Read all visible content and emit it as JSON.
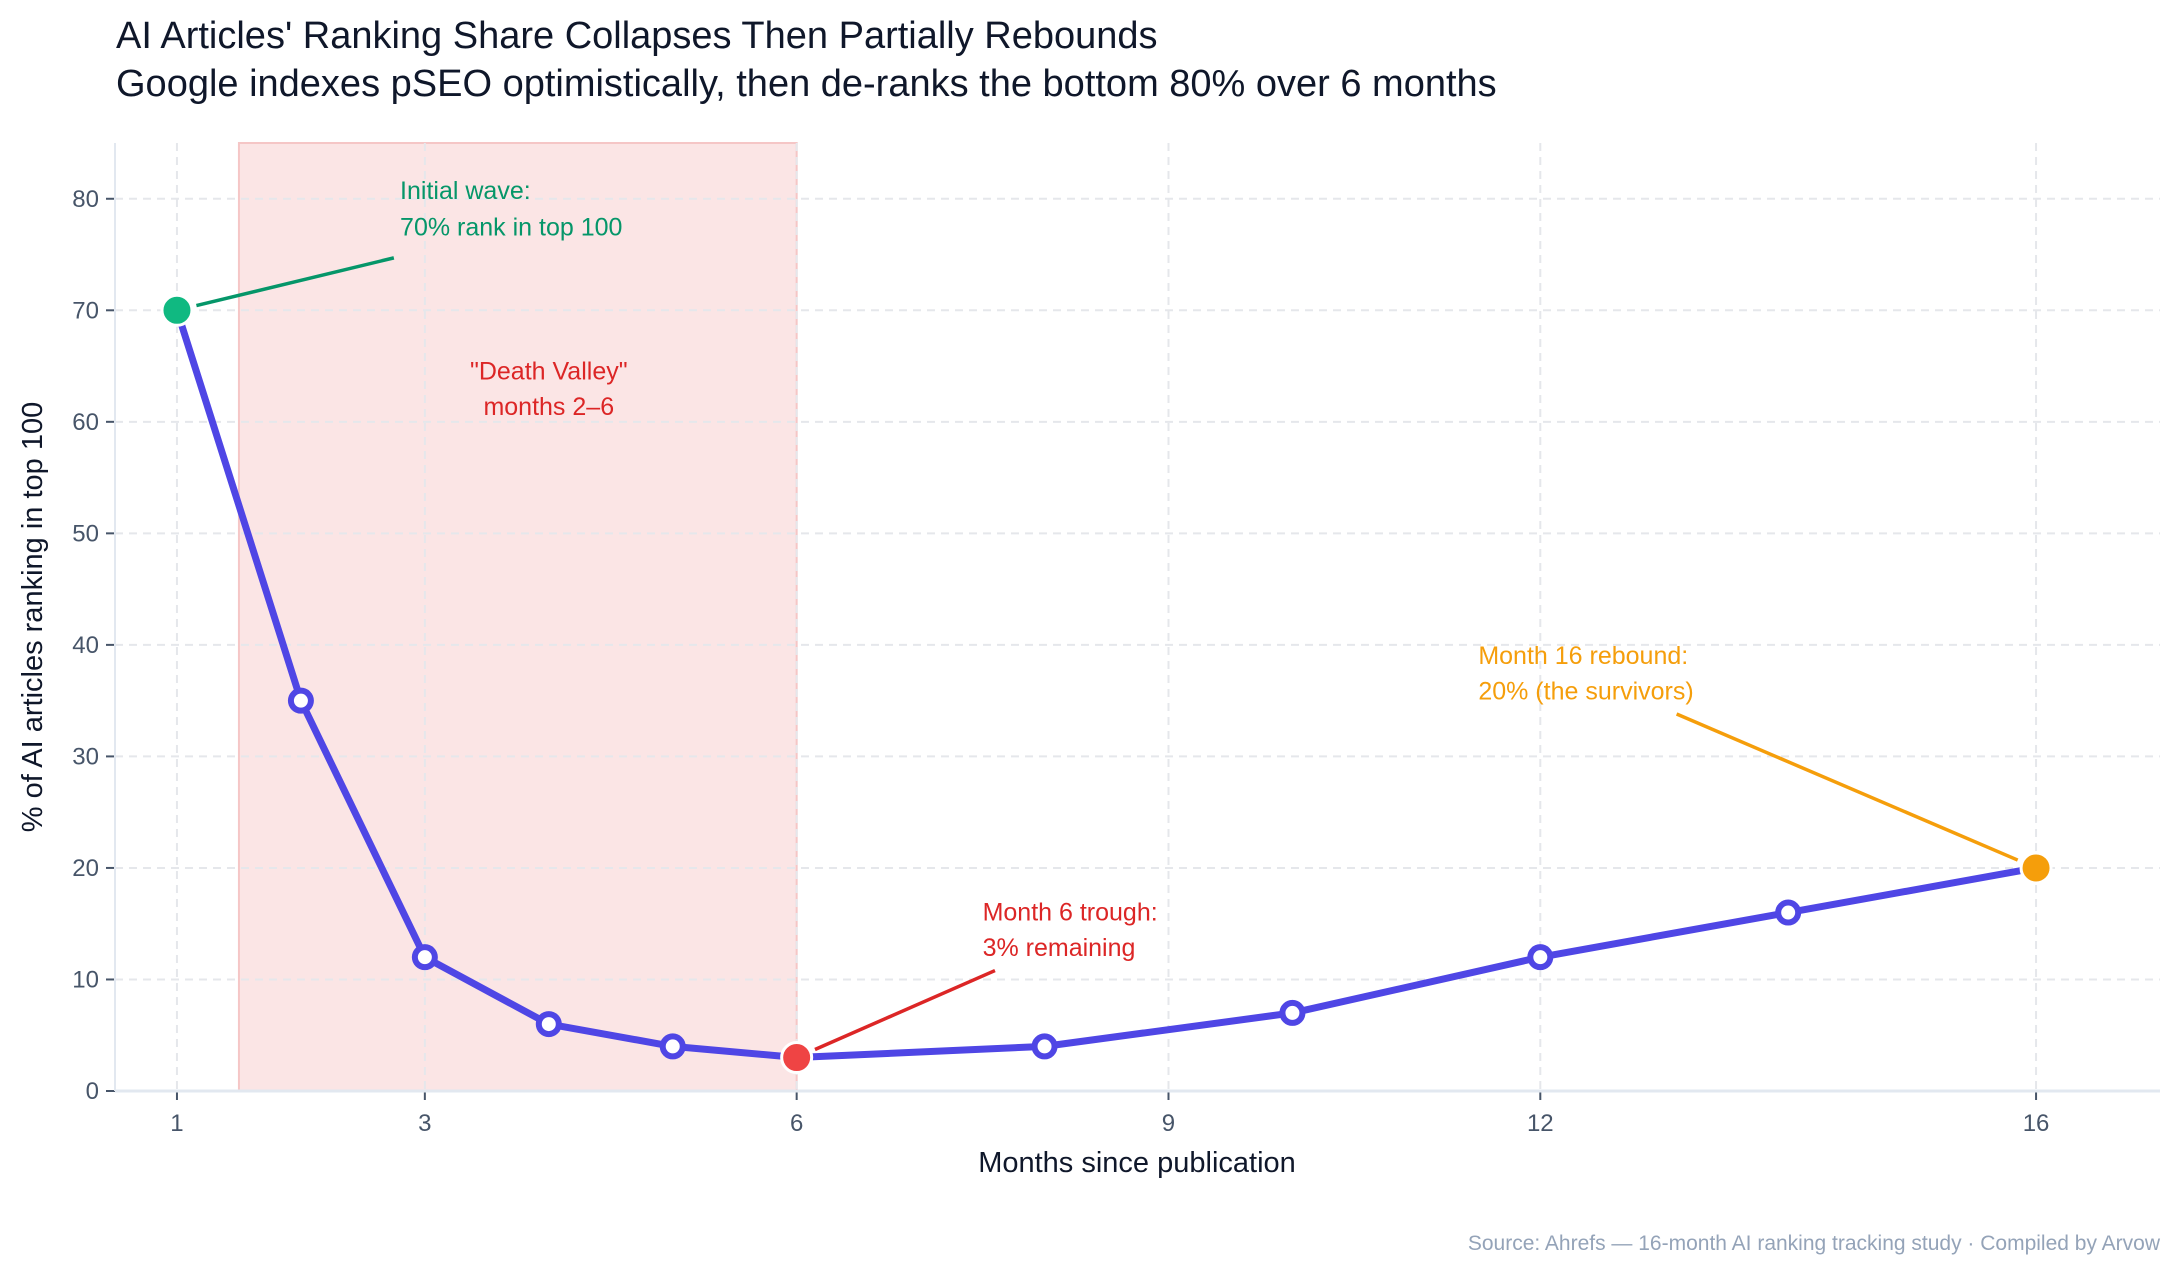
{
  "chart_data": {
    "type": "line",
    "title": "AI Articles' Ranking Share Collapses Then Partially Rebounds",
    "subtitle": "Google indexes pSEO optimistically, then de-ranks the bottom 80% over 6 months",
    "xlabel": "Months since publication",
    "ylabel": "% of AI articles ranking in top 100",
    "xlim": [
      0.5,
      17
    ],
    "ylim": [
      0,
      85
    ],
    "xticks": [
      1,
      3,
      6,
      9,
      12,
      16
    ],
    "yticks": [
      0,
      10,
      20,
      30,
      40,
      50,
      60,
      70,
      80
    ],
    "grid": true,
    "x": [
      1,
      2,
      3,
      4,
      5,
      6,
      8,
      10,
      12,
      14,
      16
    ],
    "series": [
      {
        "values": [
          70,
          35,
          12,
          6,
          4,
          3,
          4,
          7,
          12,
          16,
          20
        ],
        "color": "#4f46e5"
      }
    ],
    "highlight_region": {
      "x_start": 1.5,
      "x_end": 6,
      "color": "#fbe5e5"
    },
    "highlighted_points": [
      {
        "x": 1,
        "y": 70,
        "color": "#10b981"
      },
      {
        "x": 6,
        "y": 3,
        "color": "#ef4444"
      },
      {
        "x": 16,
        "y": 20,
        "color": "#f59e0b"
      }
    ],
    "annotations": [
      {
        "lines": [
          "Initial wave:",
          "70% rank in top 100"
        ],
        "color": "#059669",
        "points_to": {
          "x": 1,
          "y": 70
        }
      },
      {
        "lines": [
          "\"Death Valley\"",
          "months 2–6"
        ],
        "color": "#dc2626"
      },
      {
        "lines": [
          "Month 6 trough:",
          "3% remaining"
        ],
        "color": "#dc2626",
        "points_to": {
          "x": 6,
          "y": 3
        }
      },
      {
        "lines": [
          "Month 16 rebound:",
          "20% (the survivors)"
        ],
        "color": "#f59e0b",
        "points_to": {
          "x": 16,
          "y": 20
        }
      }
    ],
    "source": "Source: Ahrefs — 16-month AI ranking tracking study · Compiled by Arvow"
  }
}
